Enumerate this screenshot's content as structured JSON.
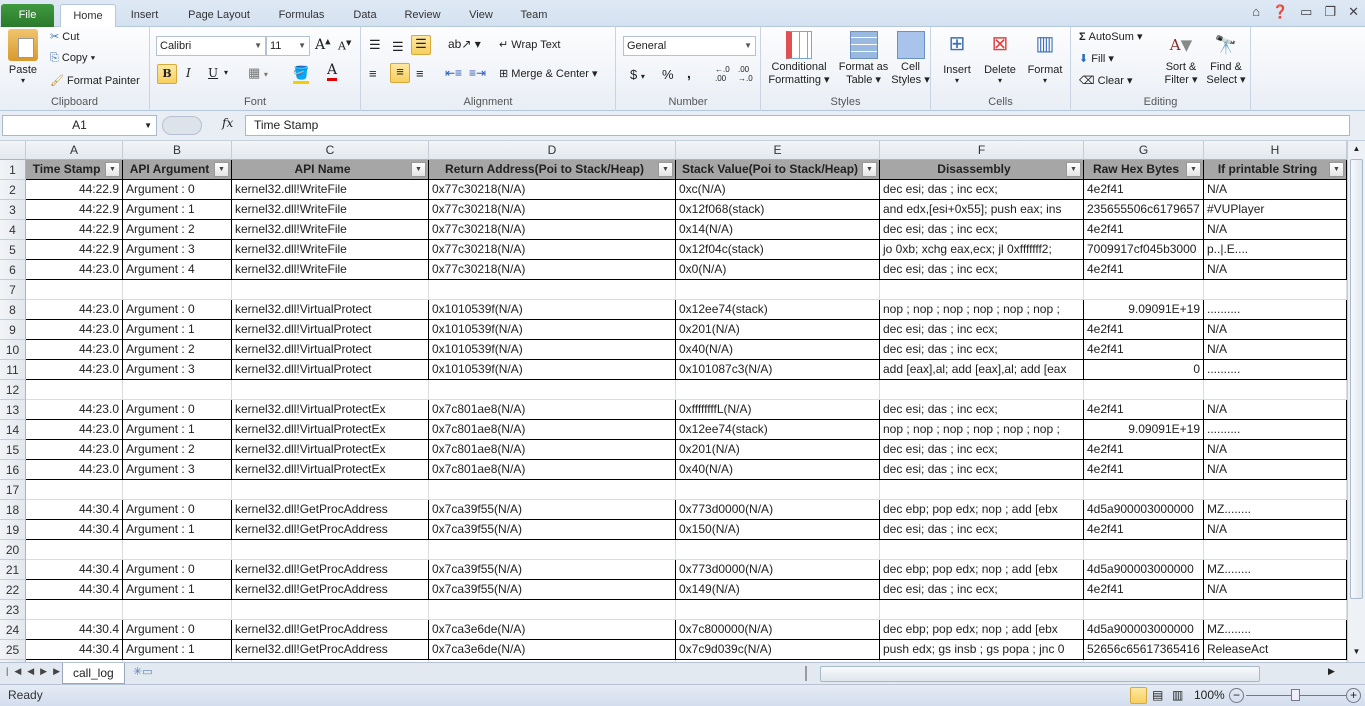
{
  "tabs": [
    "File",
    "Home",
    "Insert",
    "Page Layout",
    "Formulas",
    "Data",
    "Review",
    "View",
    "Team"
  ],
  "active_tab": "Home",
  "ribbon": {
    "clipboard": {
      "label": "Clipboard",
      "paste": "Paste",
      "cut": "Cut",
      "copy": "Copy",
      "format_painter": "Format Painter"
    },
    "font": {
      "label": "Font",
      "font_name": "Calibri",
      "font_size": "11",
      "bold": "B",
      "italic": "I",
      "underline": "U"
    },
    "alignment": {
      "label": "Alignment",
      "wrap_text": "Wrap Text",
      "merge_center": "Merge & Center"
    },
    "number": {
      "label": "Number",
      "format": "General",
      "currency": "$",
      "percent": "%",
      "comma": ","
    },
    "styles": {
      "label": "Styles",
      "conditional": "Conditional Formatting",
      "format_table": "Format as Table",
      "cell_styles": "Cell Styles"
    },
    "cells": {
      "label": "Cells",
      "insert": "Insert",
      "delete": "Delete",
      "format": "Format"
    },
    "editing": {
      "label": "Editing",
      "autosum": "AutoSum",
      "fill": "Fill",
      "clear": "Clear",
      "sort_filter": "Sort & Filter",
      "find_select": "Find & Select"
    }
  },
  "formula_bar": {
    "name_box": "A1",
    "fx": "fx",
    "value": "Time Stamp"
  },
  "columns": [
    "A",
    "B",
    "C",
    "D",
    "E",
    "F",
    "G",
    "H"
  ],
  "headers": [
    "Time Stamp",
    "API Argument",
    "API Name",
    "Return Address(Poi to Stack/Heap)",
    "Stack Value(Poi to Stack/Heap)",
    "Disassembly",
    "Raw Hex Bytes",
    "If printable String"
  ],
  "rows": [
    [
      "44:22.9",
      "Argument : 0",
      "kernel32.dll!WriteFile",
      "0x77c30218(N/A)",
      "0xc(N/A)",
      "dec esi; das ; inc ecx;",
      "4e2f41",
      "N/A"
    ],
    [
      "44:22.9",
      "Argument : 1",
      "kernel32.dll!WriteFile",
      "0x77c30218(N/A)",
      "0x12f068(stack)",
      "and edx,[esi+0x55]; push eax; ins",
      "235655506c6179657",
      "#VUPlayer"
    ],
    [
      "44:22.9",
      "Argument : 2",
      "kernel32.dll!WriteFile",
      "0x77c30218(N/A)",
      "0x14(N/A)",
      "dec esi; das ; inc ecx;",
      "4e2f41",
      "N/A"
    ],
    [
      "44:22.9",
      "Argument : 3",
      "kernel32.dll!WriteFile",
      "0x77c30218(N/A)",
      "0x12f04c(stack)",
      "jo 0xb; xchg eax,ecx; jl 0xfffffff2;",
      "7009917cf045b3000",
      "p..|.E...."
    ],
    [
      "44:23.0",
      "Argument : 4",
      "kernel32.dll!WriteFile",
      "0x77c30218(N/A)",
      "0x0(N/A)",
      "dec esi; das ; inc ecx;",
      "4e2f41",
      "N/A"
    ],
    [],
    [
      "44:23.0",
      "Argument : 0",
      "kernel32.dll!VirtualProtect",
      "0x1010539f(N/A)",
      "0x12ee74(stack)",
      "nop ; nop ; nop ; nop ; nop ; nop ;",
      "9.09091E+19",
      ".........."
    ],
    [
      "44:23.0",
      "Argument : 1",
      "kernel32.dll!VirtualProtect",
      "0x1010539f(N/A)",
      "0x201(N/A)",
      "dec esi; das ; inc ecx;",
      "4e2f41",
      "N/A"
    ],
    [
      "44:23.0",
      "Argument : 2",
      "kernel32.dll!VirtualProtect",
      "0x1010539f(N/A)",
      "0x40(N/A)",
      "dec esi; das ; inc ecx;",
      "4e2f41",
      "N/A"
    ],
    [
      "44:23.0",
      "Argument : 3",
      "kernel32.dll!VirtualProtect",
      "0x1010539f(N/A)",
      "0x101087c3(N/A)",
      "add [eax],al; add [eax],al; add [eax",
      "0",
      ".........."
    ],
    [],
    [
      "44:23.0",
      "Argument : 0",
      "kernel32.dll!VirtualProtectEx",
      "0x7c801ae8(N/A)",
      "0xffffffffL(N/A)",
      "dec esi; das ; inc ecx;",
      "4e2f41",
      "N/A"
    ],
    [
      "44:23.0",
      "Argument : 1",
      "kernel32.dll!VirtualProtectEx",
      "0x7c801ae8(N/A)",
      "0x12ee74(stack)",
      "nop ; nop ; nop ; nop ; nop ; nop ;",
      "9.09091E+19",
      ".........."
    ],
    [
      "44:23.0",
      "Argument : 2",
      "kernel32.dll!VirtualProtectEx",
      "0x7c801ae8(N/A)",
      "0x201(N/A)",
      "dec esi; das ; inc ecx;",
      "4e2f41",
      "N/A"
    ],
    [
      "44:23.0",
      "Argument : 3",
      "kernel32.dll!VirtualProtectEx",
      "0x7c801ae8(N/A)",
      "0x40(N/A)",
      "dec esi; das ; inc ecx;",
      "4e2f41",
      "N/A"
    ],
    [],
    [
      "44:30.4",
      "Argument : 0",
      "kernel32.dll!GetProcAddress",
      "0x7ca39f55(N/A)",
      "0x773d0000(N/A)",
      "dec ebp; pop edx; nop ; add [ebx",
      "4d5a900003000000",
      "MZ........"
    ],
    [
      "44:30.4",
      "Argument : 1",
      "kernel32.dll!GetProcAddress",
      "0x7ca39f55(N/A)",
      "0x150(N/A)",
      "dec esi; das ; inc ecx;",
      "4e2f41",
      "N/A"
    ],
    [],
    [
      "44:30.4",
      "Argument : 0",
      "kernel32.dll!GetProcAddress",
      "0x7ca39f55(N/A)",
      "0x773d0000(N/A)",
      "dec ebp; pop edx; nop ; add [ebx",
      "4d5a900003000000",
      "MZ........"
    ],
    [
      "44:30.4",
      "Argument : 1",
      "kernel32.dll!GetProcAddress",
      "0x7ca39f55(N/A)",
      "0x149(N/A)",
      "dec esi; das ; inc ecx;",
      "4e2f41",
      "N/A"
    ],
    [],
    [
      "44:30.4",
      "Argument : 0",
      "kernel32.dll!GetProcAddress",
      "0x7ca3e6de(N/A)",
      "0x7c800000(N/A)",
      "dec ebp; pop edx; nop ; add [ebx",
      "4d5a900003000000",
      "MZ........"
    ],
    [
      "44:30.4",
      "Argument : 1",
      "kernel32.dll!GetProcAddress",
      "0x7ca3e6de(N/A)",
      "0x7c9d039c(N/A)",
      "push edx; gs insb ; gs popa ; jnc 0",
      "52656c65617365416",
      "ReleaseAct"
    ],
    []
  ],
  "sheet_tabs": [
    "call_log"
  ],
  "status": {
    "ready": "Ready",
    "zoom": "100%"
  },
  "colors": {
    "header_fill": "#a6a6a6",
    "file_tab": "#2b7a2b",
    "highlight": "#f8cf5e"
  }
}
